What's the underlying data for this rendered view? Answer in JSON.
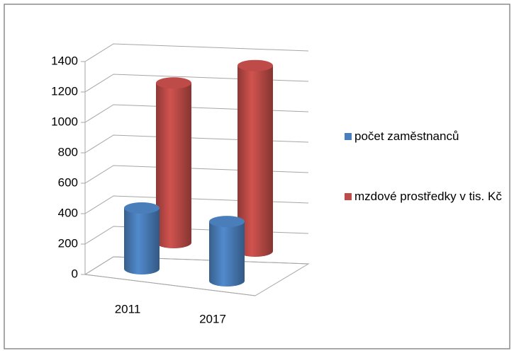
{
  "chart_data": {
    "type": "bar3d",
    "categories": [
      "2011",
      "2017"
    ],
    "series": [
      {
        "name": "počet zaměstnanců",
        "color": "#4a7ebb",
        "values": [
          400,
          390
        ]
      },
      {
        "name": "mzdové prostředky v tis. Kč",
        "color": "#be4b48",
        "values": [
          1050,
          1220
        ]
      }
    ],
    "ylim": [
      0,
      1400
    ],
    "yticks": [
      0,
      200,
      400,
      600,
      800,
      1000,
      1200,
      1400
    ],
    "grid": true,
    "legend": "right"
  }
}
